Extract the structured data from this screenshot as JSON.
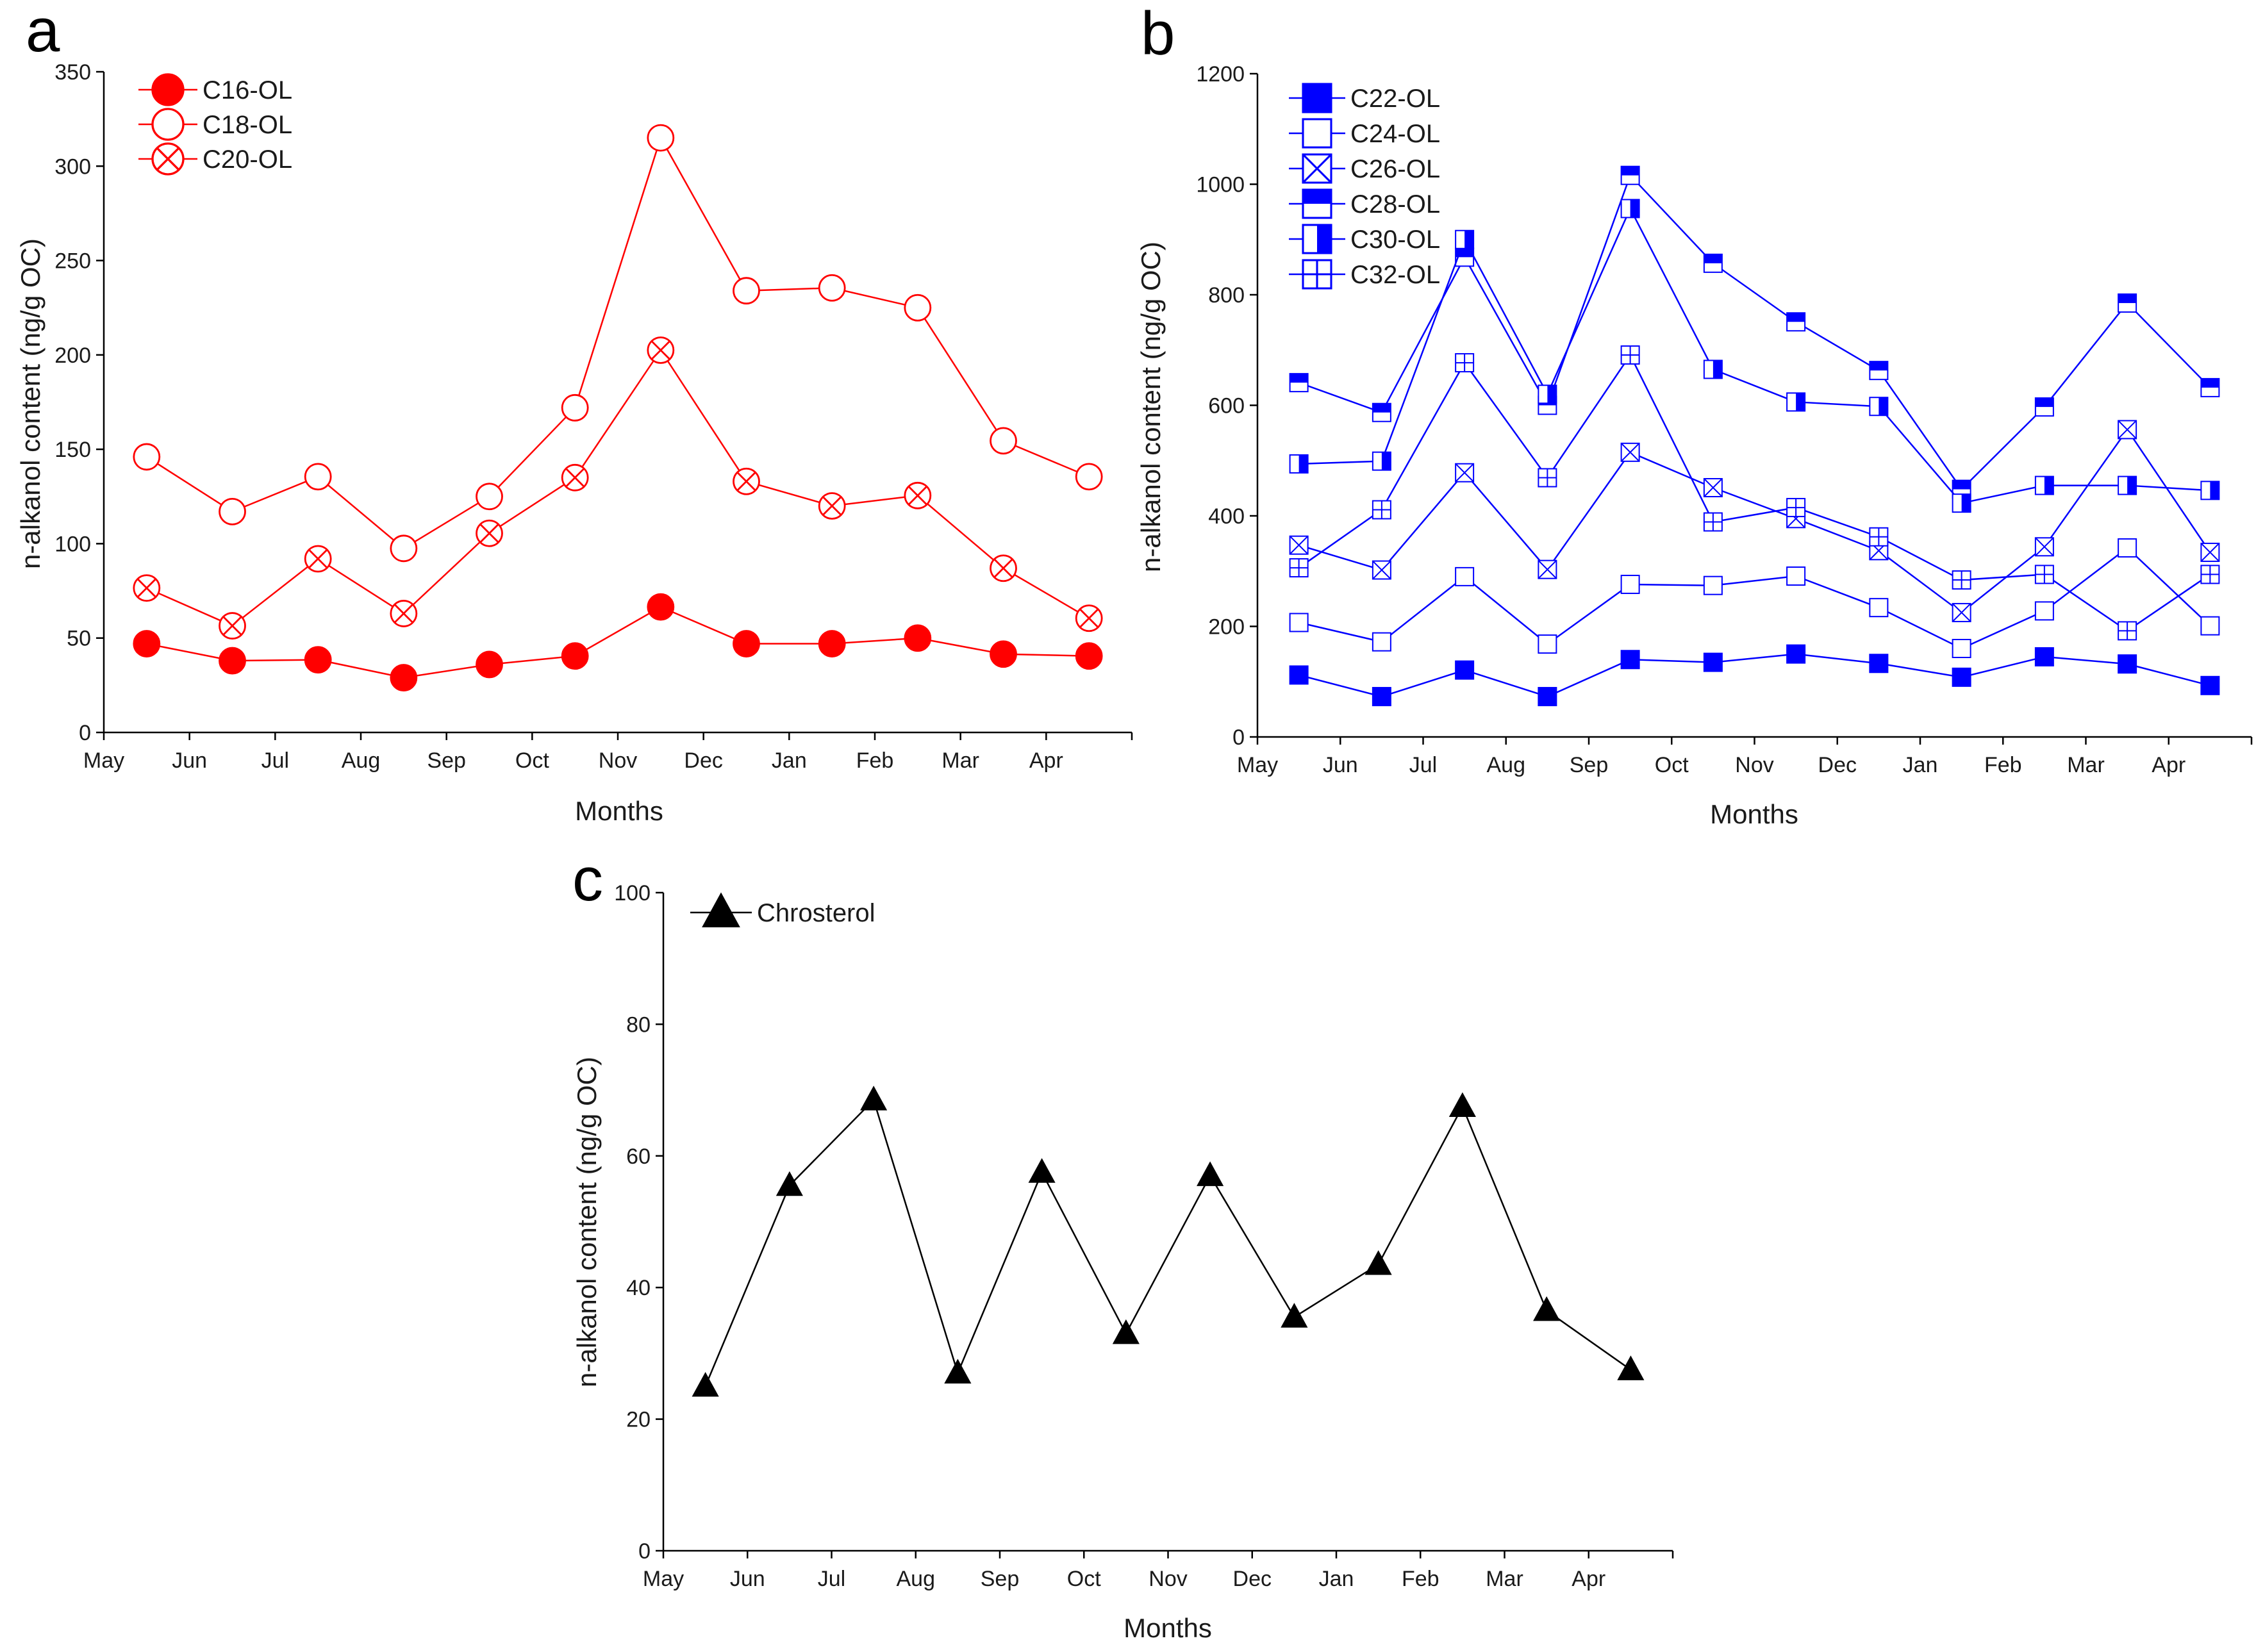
{
  "chart_data": [
    {
      "type": "line",
      "panel": "a",
      "xlabel": "Months",
      "ylabel": "n-alkanol content (ng/g OC)",
      "ylim": [
        0,
        350
      ],
      "yticks": [
        0,
        50,
        100,
        150,
        200,
        250,
        300,
        350
      ],
      "categories": [
        "May",
        "Jun",
        "Jul",
        "Aug",
        "Sep",
        "Oct",
        "Nov",
        "Dec",
        "Jan",
        "Feb",
        "Mar",
        "Apr"
      ],
      "color": "#ff0000",
      "legend_position": "top-left",
      "series": [
        {
          "name": "C16-OL",
          "marker": "filled-circle",
          "x": [
            0.5,
            1.5,
            2.5,
            3.5,
            4.5,
            5.5,
            6.5,
            7.5,
            8.5,
            9.5,
            10.5,
            11.5
          ],
          "values": [
            47,
            38,
            38.5,
            29,
            36,
            40.5,
            66.5,
            47,
            47,
            50,
            41.5,
            40.5
          ]
        },
        {
          "name": "C18-OL",
          "marker": "open-circle",
          "x": [
            0.5,
            1.5,
            2.5,
            3.5,
            4.5,
            5.5,
            6.5,
            7.5,
            8.5,
            9.5,
            10.5,
            11.5
          ],
          "values": [
            146,
            117,
            135.5,
            97.5,
            125,
            172,
            315,
            234,
            235.5,
            225,
            154.5,
            135.5
          ]
        },
        {
          "name": "C20-OL",
          "marker": "crossed-circle",
          "x": [
            0.5,
            1.5,
            2.5,
            3.5,
            4.5,
            5.5,
            6.5,
            7.5,
            8.5,
            9.5,
            10.5,
            11.5
          ],
          "values": [
            76.5,
            56.5,
            92,
            63,
            105.5,
            135,
            202.5,
            133,
            120,
            125.5,
            87,
            60.5
          ]
        }
      ]
    },
    {
      "type": "line",
      "panel": "b",
      "xlabel": "Months",
      "ylabel": "n-alkanol content (ng/g OC)",
      "ylim": [
        0,
        1200
      ],
      "yticks": [
        0,
        200,
        400,
        600,
        800,
        1000,
        1200
      ],
      "categories": [
        "May",
        "Jun",
        "Jul",
        "Aug",
        "Sep",
        "Oct",
        "Nov",
        "Dec",
        "Jan",
        "Feb",
        "Mar",
        "Apr"
      ],
      "color": "#0000ff",
      "legend_position": "top-left",
      "series": [
        {
          "name": "C22-OL",
          "marker": "filled-square",
          "x": [
            0.5,
            1.5,
            2.5,
            3.5,
            4.5,
            5.5,
            6.5,
            7.5,
            8.5,
            9.5,
            10.5,
            11.5
          ],
          "values": [
            112,
            73,
            121,
            73,
            140,
            135,
            150,
            133,
            108,
            145,
            132,
            93
          ]
        },
        {
          "name": "C24-OL",
          "marker": "open-square",
          "x": [
            0.5,
            1.5,
            2.5,
            3.5,
            4.5,
            5.5,
            6.5,
            7.5,
            8.5,
            9.5,
            10.5,
            11.5
          ],
          "values": [
            207,
            172,
            290,
            168,
            276,
            274,
            291,
            234,
            160,
            228,
            342,
            201
          ]
        },
        {
          "name": "C26-OL",
          "marker": "crossed-square",
          "x": [
            0.5,
            1.5,
            2.5,
            3.5,
            4.5,
            5.5,
            6.5,
            7.5,
            8.5,
            9.5,
            10.5,
            11.5
          ],
          "values": [
            347,
            302,
            478,
            303,
            515,
            451,
            395,
            337,
            225,
            344,
            556,
            334
          ]
        },
        {
          "name": "C28-OL",
          "marker": "top-half-square",
          "x": [
            0.5,
            1.5,
            2.5,
            3.5,
            4.5,
            5.5,
            6.5,
            7.5,
            8.5,
            9.5,
            10.5,
            11.5
          ],
          "values": [
            641,
            587,
            868,
            600,
            1016,
            857,
            751,
            663,
            448,
            597,
            785,
            632
          ]
        },
        {
          "name": "C30-OL",
          "marker": "right-half-square",
          "x": [
            0.5,
            1.5,
            2.5,
            3.5,
            4.5,
            5.5,
            6.5,
            7.5,
            8.5,
            9.5,
            10.5,
            11.5
          ],
          "values": [
            494,
            499,
            900,
            620,
            956,
            665,
            606,
            598,
            423,
            455,
            455,
            446
          ]
        },
        {
          "name": "C32-OL",
          "marker": "plus-square",
          "x": [
            0.5,
            1.5,
            2.5,
            3.5,
            4.5,
            5.5,
            6.5,
            7.5,
            8.5,
            9.5,
            10.5,
            11.5
          ],
          "values": [
            306,
            411,
            677,
            469,
            691,
            389,
            415,
            362,
            284,
            294,
            192,
            294
          ]
        }
      ]
    },
    {
      "type": "line",
      "panel": "c",
      "xlabel": "Months",
      "ylabel": "n-alkanol content (ng/g OC)",
      "ylim": [
        0,
        100
      ],
      "yticks": [
        0,
        20,
        40,
        60,
        80,
        100
      ],
      "categories": [
        "May",
        "Jun",
        "Jul",
        "Aug",
        "Sep",
        "Oct",
        "Nov",
        "Dec",
        "Jan",
        "Feb",
        "Mar",
        "Apr"
      ],
      "color": "#000000",
      "legend_position": "top-left",
      "series": [
        {
          "name": "Chrosterol",
          "marker": "filled-triangle",
          "x": [
            0.5,
            1.5,
            2.5,
            3.5,
            4.5,
            5.5,
            6.5,
            7.5,
            8.5,
            9.5,
            10.5,
            11.5
          ],
          "values": [
            25,
            55.5,
            68.5,
            27,
            57.5,
            33,
            57,
            35.5,
            43.5,
            67.5,
            36.5,
            27.5
          ]
        }
      ]
    }
  ]
}
